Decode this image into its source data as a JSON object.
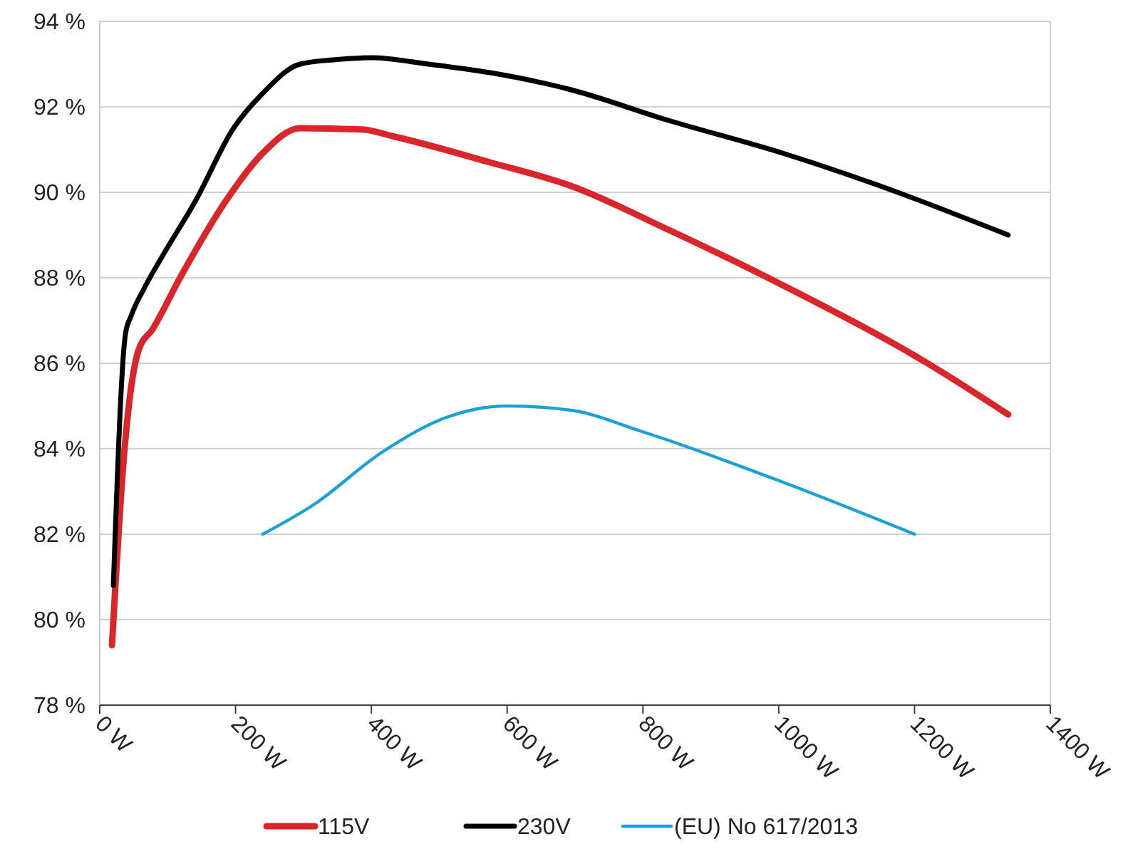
{
  "chart_data": {
    "type": "line",
    "xlim": [
      0,
      1400
    ],
    "ylim": [
      78,
      94
    ],
    "xticks": [
      {
        "value": 0,
        "label": "0 W"
      },
      {
        "value": 200,
        "label": "200 W"
      },
      {
        "value": 400,
        "label": "400 W"
      },
      {
        "value": 600,
        "label": "600 W"
      },
      {
        "value": 800,
        "label": "800 W"
      },
      {
        "value": 1000,
        "label": "1000 W"
      },
      {
        "value": 1200,
        "label": "1200 W"
      },
      {
        "value": 1400,
        "label": "1400 W"
      }
    ],
    "yticks": [
      {
        "value": 78,
        "label": "78 %"
      },
      {
        "value": 80,
        "label": "80 %"
      },
      {
        "value": 82,
        "label": "82 %"
      },
      {
        "value": 84,
        "label": "84 %"
      },
      {
        "value": 86,
        "label": "86 %"
      },
      {
        "value": 88,
        "label": "88 %"
      },
      {
        "value": 90,
        "label": "90 %"
      },
      {
        "value": 92,
        "label": "92 %"
      },
      {
        "value": 94,
        "label": "94 %"
      }
    ],
    "grid": "y",
    "legend": "bottom",
    "marker": "none",
    "line_style": "solid",
    "series": [
      {
        "name": "115V",
        "color": "#d9262b",
        "x": [
          18,
          36,
          57,
          78,
          120,
          190,
          239,
          295,
          386,
          435,
          575,
          694,
          834,
          1009,
          1219,
          1338
        ],
        "values": [
          79.4,
          83.9,
          86.3,
          86.8,
          88.05,
          89.9,
          90.9,
          91.5,
          91.47,
          91.3,
          90.7,
          90.15,
          89.15,
          87.8,
          86.0,
          84.8
        ]
      },
      {
        "name": "230V",
        "color": "#000000",
        "x": [
          20,
          38,
          46,
          67,
          92,
          141,
          197,
          239,
          295,
          344,
          400,
          484,
          575,
          694,
          834,
          1009,
          1149,
          1338
        ],
        "values": [
          80.8,
          86.7,
          87.1,
          87.8,
          88.5,
          89.8,
          91.5,
          92.3,
          93.0,
          93.1,
          93.15,
          93.0,
          92.8,
          92.4,
          91.7,
          90.9,
          90.15,
          89.0
        ]
      },
      {
        "name": "(EU) No 617/2013",
        "color": "#1ba1d6",
        "x": [
          240,
          316,
          414,
          505,
          600,
          694,
          799,
          1009,
          1200
        ],
        "values": [
          82.0,
          82.7,
          83.9,
          84.7,
          85.0,
          84.9,
          84.4,
          83.2,
          82.0
        ]
      }
    ]
  }
}
